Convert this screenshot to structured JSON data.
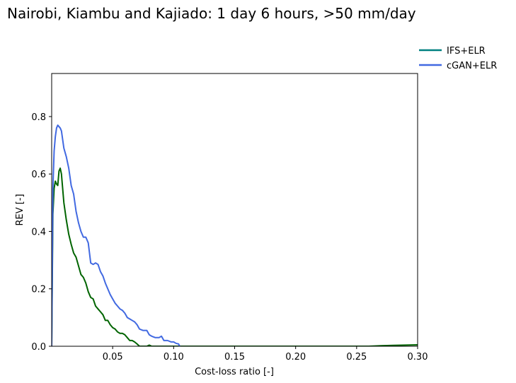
{
  "chart_data": {
    "type": "line",
    "title": "Nairobi, Kiambu and Kajiado: 1 day 6 hours, >50 mm/day",
    "xlabel": "Cost-loss ratio [-]",
    "ylabel": "REV [-]",
    "xlim": [
      0.0,
      0.3
    ],
    "ylim": [
      0.0,
      0.95
    ],
    "xticks": [
      0.05,
      0.1,
      0.15,
      0.2,
      0.25,
      0.3
    ],
    "xtick_labels": [
      "0.05",
      "0.10",
      "0.15",
      "0.20",
      "0.25",
      "0.30"
    ],
    "yticks": [
      0.0,
      0.2,
      0.4,
      0.6,
      0.8
    ],
    "ytick_labels": [
      "0.0",
      "0.2",
      "0.4",
      "0.6",
      "0.8"
    ],
    "grid": false,
    "legend_position": "upper-right-outside",
    "legend": [
      {
        "name": "IFS+ELR",
        "color": "#008080"
      },
      {
        "name": "cGAN+ELR",
        "color": "#4169e1"
      }
    ],
    "series": [
      {
        "plot_color": "#006400",
        "x": [
          0.0,
          0.001,
          0.002,
          0.003,
          0.004,
          0.005,
          0.006,
          0.007,
          0.008,
          0.01,
          0.012,
          0.014,
          0.016,
          0.018,
          0.02,
          0.022,
          0.024,
          0.026,
          0.028,
          0.03,
          0.032,
          0.034,
          0.036,
          0.038,
          0.04,
          0.042,
          0.044,
          0.046,
          0.048,
          0.05,
          0.052,
          0.054,
          0.056,
          0.058,
          0.06,
          0.062,
          0.064,
          0.066,
          0.068,
          0.07,
          0.072,
          0.075,
          0.078,
          0.08,
          0.082,
          0.26,
          0.27,
          0.28,
          0.29,
          0.3
        ],
        "y": [
          0.0,
          0.46,
          0.55,
          0.575,
          0.565,
          0.56,
          0.61,
          0.62,
          0.6,
          0.5,
          0.44,
          0.39,
          0.355,
          0.325,
          0.31,
          0.28,
          0.25,
          0.24,
          0.22,
          0.19,
          0.17,
          0.165,
          0.14,
          0.13,
          0.12,
          0.11,
          0.09,
          0.09,
          0.075,
          0.065,
          0.06,
          0.05,
          0.045,
          0.045,
          0.04,
          0.03,
          0.02,
          0.02,
          0.015,
          0.008,
          0.0,
          0.0,
          0.0,
          0.004,
          0.0,
          0.0,
          0.002,
          0.003,
          0.004,
          0.005
        ]
      },
      {
        "plot_color": "#4169e1",
        "x": [
          0.0,
          0.001,
          0.002,
          0.003,
          0.004,
          0.005,
          0.006,
          0.007,
          0.008,
          0.01,
          0.012,
          0.014,
          0.016,
          0.018,
          0.02,
          0.022,
          0.024,
          0.026,
          0.028,
          0.03,
          0.032,
          0.034,
          0.036,
          0.038,
          0.04,
          0.042,
          0.044,
          0.046,
          0.048,
          0.05,
          0.052,
          0.054,
          0.056,
          0.058,
          0.06,
          0.062,
          0.064,
          0.066,
          0.068,
          0.07,
          0.072,
          0.075,
          0.078,
          0.08,
          0.082,
          0.085,
          0.088,
          0.09,
          0.092,
          0.095,
          0.098,
          0.1,
          0.102,
          0.104,
          0.105
        ],
        "y": [
          0.0,
          0.55,
          0.68,
          0.73,
          0.76,
          0.77,
          0.765,
          0.76,
          0.75,
          0.69,
          0.66,
          0.62,
          0.56,
          0.53,
          0.47,
          0.43,
          0.4,
          0.38,
          0.38,
          0.36,
          0.29,
          0.285,
          0.29,
          0.285,
          0.26,
          0.245,
          0.22,
          0.2,
          0.18,
          0.165,
          0.15,
          0.14,
          0.13,
          0.125,
          0.115,
          0.1,
          0.095,
          0.09,
          0.085,
          0.075,
          0.06,
          0.055,
          0.055,
          0.04,
          0.035,
          0.03,
          0.03,
          0.035,
          0.02,
          0.02,
          0.015,
          0.015,
          0.01,
          0.008,
          0.0
        ]
      }
    ]
  }
}
